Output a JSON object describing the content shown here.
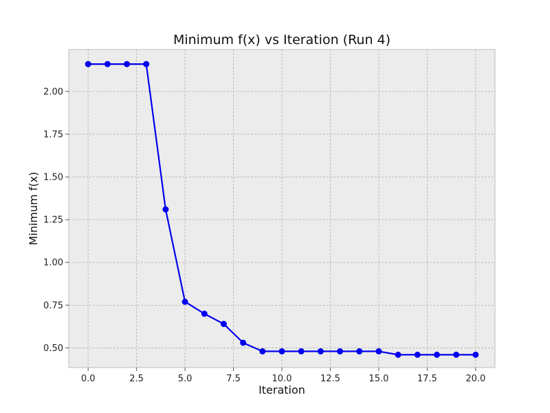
{
  "chart_data": {
    "type": "line",
    "title": "Minimum f(x) vs Iteration (Run 4)",
    "xlabel": "Iteration",
    "ylabel": "Minimum f(x)",
    "x": [
      0,
      1,
      2,
      3,
      4,
      5,
      6,
      7,
      8,
      9,
      10,
      11,
      12,
      13,
      14,
      15,
      16,
      17,
      18,
      19,
      20
    ],
    "series": [
      {
        "values": [
          2.16,
          2.16,
          2.16,
          2.16,
          1.31,
          0.77,
          0.7,
          0.64,
          0.53,
          0.48,
          0.48,
          0.48,
          0.48,
          0.48,
          0.48,
          0.48,
          0.46,
          0.46,
          0.46,
          0.46,
          0.46
        ],
        "color": "#0000ee"
      }
    ],
    "xlim": [
      -1,
      21
    ],
    "ylim": [
      0.385,
      2.245
    ],
    "xticks": [
      0.0,
      2.5,
      5.0,
      7.5,
      10.0,
      12.5,
      15.0,
      17.5,
      20.0
    ],
    "xtick_labels": [
      "0.0",
      "2.5",
      "5.0",
      "7.5",
      "10.0",
      "12.5",
      "15.0",
      "17.5",
      "20.0"
    ],
    "yticks": [
      0.5,
      0.75,
      1.0,
      1.25,
      1.5,
      1.75,
      2.0
    ],
    "ytick_labels": [
      "0.50",
      "0.75",
      "1.00",
      "1.25",
      "1.50",
      "1.75",
      "2.00"
    ],
    "grid": true,
    "marker": "circle",
    "background_color": "#ececec"
  }
}
